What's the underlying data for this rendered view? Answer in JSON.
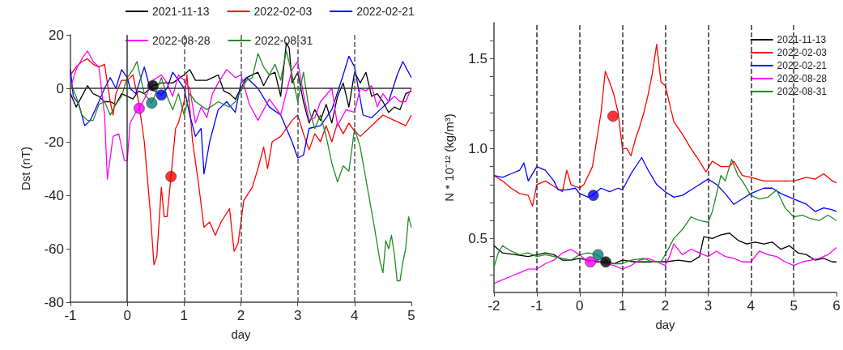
{
  "chart_data": [
    {
      "type": "line",
      "xlabel": "day",
      "ylabel": "Dst (nT)",
      "xlim": [
        -1,
        5
      ],
      "ylim": [
        -80,
        20
      ],
      "xticks": [
        -1,
        0,
        1,
        2,
        3,
        4,
        5
      ],
      "yticks": [
        -80,
        -60,
        -40,
        -20,
        0,
        20
      ],
      "grid": false,
      "legend": "top",
      "marker": "none",
      "line_style": "solid",
      "ref_lines": [
        {
          "axis": "x",
          "value": 0,
          "line_style": "solid",
          "color": "#333333"
        },
        {
          "axis": "y",
          "value": 0,
          "line_style": "solid",
          "color": "#333333"
        },
        {
          "axis": "x",
          "value": 1,
          "line_style": "dashed",
          "color": "#555555"
        },
        {
          "axis": "x",
          "value": 2,
          "line_style": "dashed",
          "color": "#555555"
        },
        {
          "axis": "x",
          "value": 3,
          "line_style": "dashed",
          "color": "#555555"
        },
        {
          "axis": "x",
          "value": 4,
          "line_style": "dashed",
          "color": "#555555"
        }
      ],
      "series": [
        {
          "name": "2021-11-13",
          "color": "#000000",
          "x": [
            -1,
            -0.9,
            -0.8,
            -0.7,
            -0.6,
            -0.5,
            -0.4,
            -0.3,
            -0.2,
            -0.1,
            0,
            0.1,
            0.2,
            0.3,
            0.4,
            0.45,
            0.6,
            0.8,
            1,
            1.1,
            1.2,
            1.4,
            1.5,
            1.6,
            1.7,
            1.8,
            1.9,
            2,
            2.1,
            2.3,
            2.4,
            2.5,
            2.6,
            2.7,
            2.8,
            2.85,
            2.9,
            3,
            3.1,
            3.2,
            3.3,
            3.4,
            3.5,
            3.6,
            3.7,
            3.8,
            3.9,
            4,
            4.1,
            4.2,
            4.3,
            4.4,
            4.5,
            4.6,
            4.7,
            4.8,
            4.9,
            5
          ],
          "values": [
            -2,
            -7,
            -3,
            1,
            -2,
            -3,
            -5,
            -5,
            -6,
            -2,
            -3,
            -4,
            -1,
            -2,
            0,
            1,
            2,
            2,
            5,
            7,
            3,
            3,
            4,
            5,
            -1,
            -2,
            -4,
            0,
            4,
            6,
            1,
            5,
            6,
            -3,
            17,
            15,
            2,
            6,
            -5,
            -13,
            -8,
            -12,
            -6,
            -13,
            -3,
            2,
            -7,
            6,
            2,
            6,
            -3,
            -2,
            -5,
            -9,
            -7,
            -8,
            -2,
            -1
          ]
        },
        {
          "name": "2022-02-03",
          "color": "#ff0000",
          "x": [
            -1,
            -0.9,
            -0.8,
            -0.7,
            -0.6,
            -0.5,
            -0.4,
            -0.3,
            -0.25,
            -0.2,
            -0.1,
            0,
            0.1,
            0.2,
            0.3,
            0.4,
            0.47,
            0.52,
            0.6,
            0.65,
            0.7,
            0.77,
            0.85,
            0.9,
            1,
            1.05,
            1.15,
            1.25,
            1.35,
            1.45,
            1.55,
            1.65,
            1.8,
            1.88,
            1.95,
            2.05,
            2.2,
            2.3,
            2.4,
            2.47,
            2.55,
            2.7,
            2.9,
            3,
            3.1,
            3.2,
            3.3,
            3.4,
            3.5,
            3.6,
            3.7,
            3.8,
            3.9,
            4,
            4.1,
            4.3,
            4.5,
            4.7,
            4.9,
            5
          ],
          "values": [
            5,
            8,
            10,
            11,
            9,
            8,
            9,
            -5,
            -10,
            -2,
            3,
            3,
            5,
            -5,
            -20,
            -45,
            -66,
            -63,
            -37,
            -48,
            -48,
            -33,
            -15,
            -13,
            -5,
            5,
            -20,
            -35,
            -52,
            -50,
            -55,
            -50,
            -45,
            -61,
            -58,
            -42,
            -37,
            -30,
            -22,
            -30,
            -20,
            -18,
            -12,
            -10,
            -17,
            -23,
            -17,
            -20,
            -14,
            -20,
            -13,
            -17,
            -13,
            -16,
            -18,
            -14,
            -10,
            -12,
            -14,
            -10
          ]
        },
        {
          "name": "2022-02-21",
          "color": "#0000ff",
          "x": [
            -1,
            -0.95,
            -0.85,
            -0.75,
            -0.65,
            -0.5,
            -0.4,
            -0.3,
            -0.2,
            -0.1,
            0,
            0.05,
            0.15,
            0.3,
            0.4,
            0.6,
            0.7,
            0.8,
            0.9,
            1,
            1.1,
            1.2,
            1.3,
            1.35,
            1.45,
            1.6,
            1.75,
            1.9,
            2,
            2.1,
            2.3,
            2.5,
            2.7,
            2.9,
            3,
            3.1,
            3.2,
            3.4,
            3.6,
            3.8,
            3.9,
            4,
            4.15,
            4.3,
            4.45,
            4.6,
            4.75,
            4.85,
            4.95,
            5
          ],
          "values": [
            7,
            -3,
            -6,
            -14,
            -12,
            -5,
            0,
            4,
            0,
            7,
            4,
            0,
            -2,
            8,
            0,
            -2.5,
            0,
            6,
            3,
            0,
            -10,
            -18,
            -15,
            -32,
            -20,
            -8,
            -5,
            -9,
            2,
            4,
            0,
            -7,
            -10,
            -20,
            -26,
            -25,
            -15,
            -14,
            -8,
            5,
            12,
            8,
            -10,
            -11,
            -8,
            -5,
            5,
            10,
            6,
            4
          ]
        },
        {
          "name": "2022-08-28",
          "color": "#ff00ff",
          "x": [
            -1,
            -0.9,
            -0.8,
            -0.7,
            -0.6,
            -0.5,
            -0.4,
            -0.35,
            -0.25,
            -0.15,
            -0.05,
            0,
            0.05,
            0.15,
            0.21,
            0.35,
            0.45,
            0.6,
            0.7,
            0.8,
            0.9,
            1,
            1.1,
            1.2,
            1.3,
            1.4,
            1.5,
            1.6,
            1.75,
            1.9,
            2,
            2.15,
            2.3,
            2.5,
            2.7,
            2.9,
            3,
            3.1,
            3.2,
            3.3,
            3.4,
            3.6,
            3.7,
            3.85,
            4,
            4.1,
            4.2,
            4.3,
            4.4,
            4.5,
            4.6,
            4.7,
            4.8,
            4.9,
            5
          ],
          "values": [
            0,
            7,
            11,
            14,
            10,
            8,
            -10,
            -34,
            -18,
            -17,
            -27,
            -27,
            -13,
            -9,
            -7.5,
            -2,
            3,
            5,
            2,
            -3,
            5,
            3,
            0,
            -13,
            -7,
            -11,
            -2,
            2,
            7,
            4,
            5,
            -6,
            -12,
            -4,
            -10,
            7,
            10,
            -2,
            -12,
            -11,
            -5,
            0,
            -14,
            -8,
            -9,
            0,
            -1,
            1,
            -7,
            -2,
            -5,
            -3,
            -5,
            -5,
            0
          ]
        },
        {
          "name": "2022-08-31",
          "color": "#228b22",
          "x": [
            -1,
            -0.9,
            -0.8,
            -0.7,
            -0.6,
            -0.5,
            -0.4,
            -0.3,
            -0.2,
            -0.1,
            0,
            0.1,
            0.17,
            0.3,
            0.43,
            0.5,
            0.6,
            0.7,
            0.8,
            0.9,
            1,
            1.1,
            1.2,
            1.4,
            1.6,
            1.8,
            1.9,
            2,
            2.1,
            2.2,
            2.3,
            2.4,
            2.5,
            2.6,
            2.7,
            2.8,
            2.9,
            3,
            3.1,
            3.2,
            3.3,
            3.4,
            3.5,
            3.6,
            3.7,
            3.8,
            3.9,
            4,
            4.1,
            4.15,
            4.25,
            4.35,
            4.45,
            4.5,
            4.55,
            4.6,
            4.65,
            4.7,
            4.75,
            4.8,
            4.85,
            4.9,
            4.95,
            5
          ],
          "values": [
            2,
            -3,
            -10,
            -12,
            -12,
            -6,
            -5,
            -10,
            -6,
            -3,
            4,
            7,
            10,
            -2,
            -5.5,
            -2,
            4,
            -3,
            -8,
            -2,
            -10,
            -2,
            -5,
            -8,
            -5,
            -7,
            -5,
            -1,
            3,
            4,
            13,
            8,
            5,
            9,
            3,
            14,
            5,
            -5,
            6,
            -8,
            -15,
            -10,
            -18,
            -28,
            -35,
            -29,
            -31,
            -15,
            -22,
            -28,
            -40,
            -52,
            -65,
            -69,
            -57,
            -60,
            -55,
            -62,
            -72,
            -72,
            -65,
            -60,
            -48,
            -52
          ]
        },
        {
          "type": "scatter",
          "marker": "circle",
          "color": "#000000",
          "x": [
            0.45
          ],
          "values": [
            1
          ]
        },
        {
          "type": "scatter",
          "marker": "circle",
          "color": "#0000ff",
          "x": [
            0.6
          ],
          "values": [
            -2.5
          ]
        },
        {
          "type": "scatter",
          "marker": "circle",
          "color": "#008080",
          "x": [
            0.43
          ],
          "values": [
            -5.5
          ]
        },
        {
          "type": "scatter",
          "marker": "circle",
          "color": "#ff00ff",
          "x": [
            0.21
          ],
          "values": [
            -7.5
          ]
        },
        {
          "type": "scatter",
          "marker": "circle",
          "color": "#ff0000",
          "x": [
            0.77
          ],
          "values": [
            -33
          ]
        }
      ]
    },
    {
      "type": "line",
      "xlabel": "day",
      "ylabel": "N * 10⁻¹² (kg/m³)",
      "xlim": [
        -2,
        6
      ],
      "ylim": [
        0.2,
        1.7
      ],
      "xticks": [
        -2,
        -1,
        0,
        1,
        2,
        3,
        4,
        5,
        6
      ],
      "yticks": [
        {
          "value": 0.3,
          "label": null
        },
        {
          "value": 0.4,
          "label": null
        },
        0.5,
        {
          "value": 0.6,
          "label": null
        },
        {
          "value": 0.7,
          "label": null
        },
        {
          "value": 0.8,
          "label": null
        },
        {
          "value": 0.9,
          "label": null
        },
        {
          "value": 1,
          "label": "1.0"
        },
        {
          "value": 1.1,
          "label": null
        },
        {
          "value": 1.2,
          "label": null
        },
        {
          "value": 1.3,
          "label": null
        },
        {
          "value": 1.4,
          "label": null
        },
        1.5,
        {
          "value": 1.6,
          "label": null
        }
      ],
      "grid": false,
      "legend": "top right",
      "marker": "none",
      "line_style": "solid",
      "ref_lines": [
        {
          "axis": "x",
          "value": -1,
          "line_style": "dashed",
          "color": "#333333"
        },
        {
          "axis": "x",
          "value": 0,
          "line_style": "dashed",
          "color": "#333333"
        },
        {
          "axis": "x",
          "value": 1,
          "line_style": "dashed",
          "color": "#333333"
        },
        {
          "axis": "x",
          "value": 2,
          "line_style": "dashed",
          "color": "#333333"
        },
        {
          "axis": "x",
          "value": 3,
          "line_style": "dashed",
          "color": "#333333"
        },
        {
          "axis": "x",
          "value": 4,
          "line_style": "dashed",
          "color": "#333333"
        },
        {
          "axis": "x",
          "value": 5,
          "line_style": "dashed",
          "color": "#333333"
        }
      ],
      "series": [
        {
          "name": "2021-11-13",
          "color": "#000000",
          "x": [
            -2,
            -1.8,
            -1.5,
            -1.2,
            -1,
            -0.8,
            -0.6,
            -0.4,
            -0.2,
            0,
            0.2,
            0.4,
            0.6,
            0.8,
            1,
            1.3,
            1.6,
            2,
            2.3,
            2.6,
            2.8,
            2.9,
            3.1,
            3.3,
            3.5,
            3.7,
            3.9,
            4.1,
            4.3,
            4.5,
            4.7,
            4.9,
            5.1,
            5.3,
            5.5,
            5.7,
            5.9,
            6
          ],
          "values": [
            0.46,
            0.42,
            0.41,
            0.4,
            0.41,
            0.42,
            0.41,
            0.38,
            0.38,
            0.39,
            0.38,
            0.37,
            0.37,
            0.36,
            0.38,
            0.37,
            0.37,
            0.37,
            0.38,
            0.37,
            0.4,
            0.51,
            0.5,
            0.52,
            0.53,
            0.49,
            0.47,
            0.48,
            0.47,
            0.48,
            0.44,
            0.46,
            0.42,
            0.41,
            0.38,
            0.39,
            0.37,
            0.37
          ]
        },
        {
          "name": "2022-02-03",
          "color": "#ff0000",
          "x": [
            -2,
            -1.8,
            -1.6,
            -1.4,
            -1.2,
            -1.1,
            -1,
            -0.8,
            -0.6,
            -0.4,
            -0.3,
            -0.2,
            0,
            0.1,
            0.3,
            0.5,
            0.6,
            0.7,
            0.8,
            0.9,
            0.95,
            1,
            1.1,
            1.2,
            1.3,
            1.4,
            1.5,
            1.6,
            1.7,
            1.8,
            1.9,
            2,
            2.1,
            2.2,
            2.4,
            2.6,
            2.8,
            2.95,
            3.1,
            3.3,
            3.5,
            3.6,
            3.8,
            4,
            4.3,
            4.6,
            5,
            5.3,
            5.5,
            5.7,
            5.9,
            6
          ],
          "values": [
            0.85,
            0.82,
            0.78,
            0.75,
            0.74,
            0.68,
            0.8,
            0.82,
            0.79,
            0.76,
            0.88,
            0.8,
            0.78,
            0.8,
            0.9,
            1.2,
            1.43,
            1.37,
            1.3,
            1.2,
            1.1,
            1,
            1,
            0.96,
            1.05,
            1.12,
            1.2,
            1.3,
            1.42,
            1.58,
            1.37,
            1.35,
            1.25,
            1.15,
            1.08,
            1,
            0.93,
            0.87,
            0.93,
            0.9,
            0.9,
            0.93,
            0.85,
            0.84,
            0.82,
            0.82,
            0.82,
            0.84,
            0.83,
            0.86,
            0.82,
            0.81
          ]
        },
        {
          "name": "2022-02-21",
          "color": "#0000ff",
          "x": [
            -2,
            -1.8,
            -1.6,
            -1.4,
            -1.3,
            -1.2,
            -1,
            -0.8,
            -0.6,
            -0.5,
            -0.3,
            -0.1,
            0,
            0.2,
            0.3,
            0.5,
            0.7,
            0.9,
            1,
            1.2,
            1.45,
            1.6,
            1.8,
            2,
            2.2,
            2.4,
            2.6,
            2.8,
            3,
            3.2,
            3.4,
            3.6,
            3.8,
            4,
            4.3,
            4.5,
            4.7,
            5,
            5.3,
            5.5,
            5.7,
            5.9,
            6
          ],
          "values": [
            0.85,
            0.84,
            0.86,
            0.88,
            0.92,
            0.82,
            0.9,
            0.88,
            0.82,
            0.77,
            0.77,
            0.78,
            0.75,
            0.73,
            0.74,
            0.78,
            0.76,
            0.78,
            0.77,
            0.86,
            0.95,
            0.88,
            0.8,
            0.76,
            0.73,
            0.74,
            0.77,
            0.8,
            0.83,
            0.8,
            0.75,
            0.69,
            0.72,
            0.75,
            0.78,
            0.78,
            0.75,
            0.72,
            0.69,
            0.65,
            0.67,
            0.66,
            0.65
          ]
        },
        {
          "name": "2022-08-28",
          "color": "#ff00ff",
          "x": [
            -2,
            -1.8,
            -1.6,
            -1.4,
            -1.2,
            -1,
            -0.8,
            -0.6,
            -0.4,
            -0.2,
            0,
            0.2,
            0.4,
            0.6,
            0.8,
            1,
            1.2,
            1.4,
            1.6,
            1.8,
            2,
            2.1,
            2.2,
            2.4,
            2.6,
            2.8,
            3,
            3.2,
            3.4,
            3.6,
            3.8,
            4,
            4.2,
            4.4,
            4.6,
            4.8,
            5,
            5.2,
            5.4,
            5.6,
            5.8,
            6
          ],
          "values": [
            0.25,
            0.27,
            0.29,
            0.31,
            0.33,
            0.33,
            0.36,
            0.38,
            0.42,
            0.44,
            0.41,
            0.37,
            0.38,
            0.36,
            0.35,
            0.33,
            0.35,
            0.38,
            0.39,
            0.37,
            0.35,
            0.4,
            0.47,
            0.41,
            0.44,
            0.42,
            0.4,
            0.43,
            0.4,
            0.39,
            0.37,
            0.37,
            0.43,
            0.41,
            0.4,
            0.37,
            0.35,
            0.37,
            0.38,
            0.39,
            0.41,
            0.45
          ]
        },
        {
          "name": "2022-08-31",
          "color": "#228b22",
          "x": [
            -2,
            -1.9,
            -1.8,
            -1.6,
            -1.4,
            -1.2,
            -1,
            -0.8,
            -0.6,
            -0.4,
            -0.2,
            0,
            0.2,
            0.4,
            0.6,
            0.8,
            1,
            1.2,
            1.5,
            1.7,
            1.9,
            2,
            2.2,
            2.4,
            2.6,
            2.8,
            3,
            3.1,
            3.2,
            3.3,
            3.4,
            3.55,
            3.7,
            3.8,
            4,
            4.2,
            4.4,
            4.6,
            4.8,
            5,
            5.2,
            5.4,
            5.6,
            5.8,
            6
          ],
          "values": [
            0.34,
            0.42,
            0.46,
            0.43,
            0.41,
            0.42,
            0.4,
            0.41,
            0.4,
            0.39,
            0.38,
            0.41,
            0.42,
            0.41,
            0.38,
            0.36,
            0.36,
            0.38,
            0.39,
            0.37,
            0.37,
            0.41,
            0.5,
            0.55,
            0.62,
            0.6,
            0.59,
            0.65,
            0.75,
            0.85,
            0.82,
            0.94,
            0.85,
            0.82,
            0.74,
            0.72,
            0.73,
            0.77,
            0.67,
            0.62,
            0.63,
            0.61,
            0.6,
            0.63,
            0.6
          ]
        },
        {
          "type": "scatter",
          "marker": "circle",
          "color": "#ff0000",
          "x": [
            0.78
          ],
          "values": [
            1.18
          ]
        },
        {
          "type": "scatter",
          "marker": "circle",
          "color": "#0000ff",
          "x": [
            0.32
          ],
          "values": [
            0.74
          ]
        },
        {
          "type": "scatter",
          "marker": "circle",
          "color": "#008080",
          "x": [
            0.43
          ],
          "values": [
            0.41
          ]
        },
        {
          "type": "scatter",
          "marker": "circle",
          "color": "#ff00ff",
          "x": [
            0.25
          ],
          "values": [
            0.37
          ]
        },
        {
          "type": "scatter",
          "marker": "circle",
          "color": "#000000",
          "x": [
            0.61
          ],
          "values": [
            0.37
          ]
        }
      ]
    }
  ]
}
